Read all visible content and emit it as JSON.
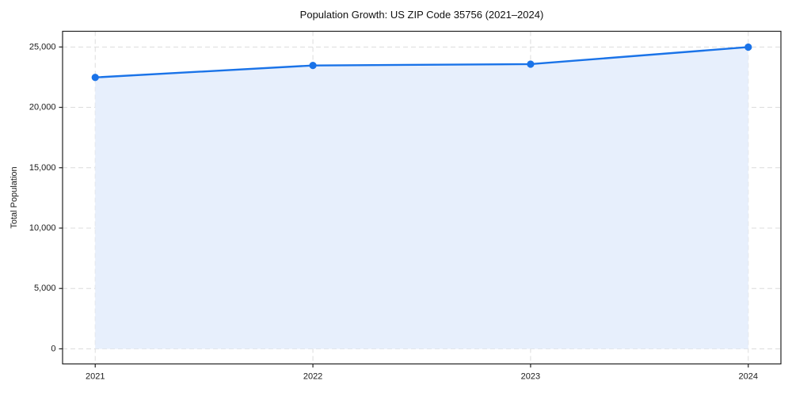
{
  "chart_data": {
    "type": "area",
    "title": "Population Growth: US ZIP Code 35756 (2021–2024)",
    "xlabel": "",
    "ylabel": "Total Population",
    "x": [
      2021,
      2022,
      2023,
      2024
    ],
    "x_tick_labels": [
      "2021",
      "2022",
      "2023",
      "2024"
    ],
    "series": [
      {
        "name": "Total Population",
        "values": [
          22480,
          23470,
          23580,
          24990
        ]
      }
    ],
    "y_ticks": [
      0,
      5000,
      10000,
      15000,
      20000,
      25000
    ],
    "y_tick_labels": [
      "0",
      "5,000",
      "10,000",
      "15,000",
      "20,000",
      "25,000"
    ],
    "xlim": [
      2020.85,
      2024.15
    ],
    "ylim": [
      -1250,
      26300
    ],
    "fill_baseline": 0,
    "grid": true,
    "grid_style": "dashed",
    "legend": "none",
    "colors": {
      "line": "#1a73e8",
      "marker": "#1a73e8",
      "fill": "#e7effc",
      "grid": "#dcdcdc",
      "spine": "#222222",
      "text": "#1a1a1a",
      "background": "#ffffff"
    }
  }
}
